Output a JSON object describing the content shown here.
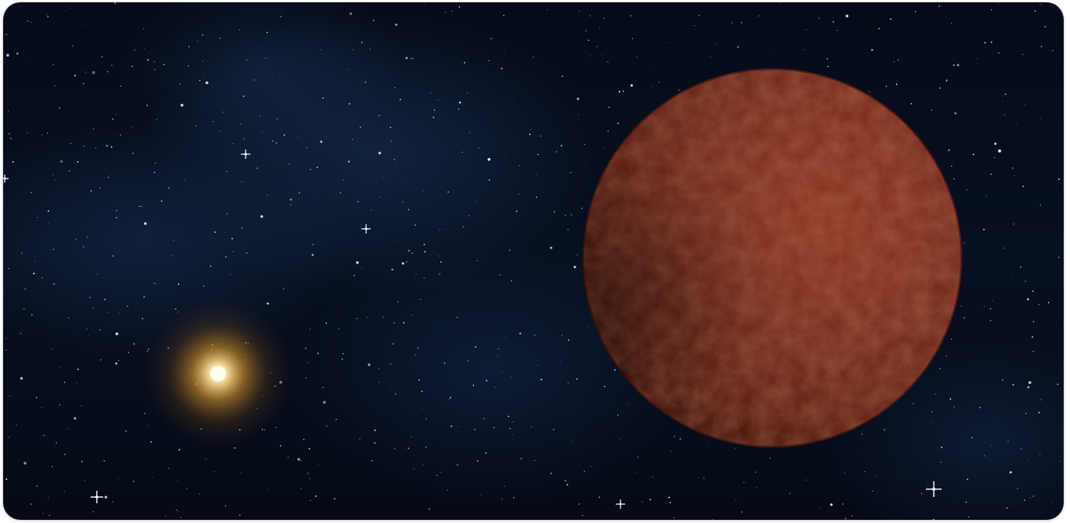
{
  "scene": {
    "background_color": "#060d1c",
    "nebula_color": "#1c345c",
    "star_color": "#ffffff",
    "sun_core_color": "#fff6d8",
    "sun_glow_color": "#f0a830",
    "planet_color": "#7a2a14",
    "planet_highlight_color": "#9a3a1e",
    "planet_shadow_color": "#3a1008"
  }
}
